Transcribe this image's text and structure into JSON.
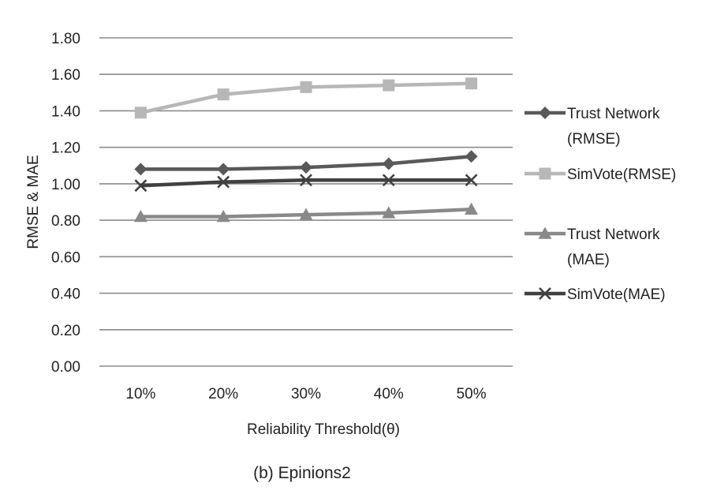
{
  "chart_data": {
    "type": "line",
    "categories": [
      "10%",
      "20%",
      "30%",
      "40%",
      "50%"
    ],
    "ylabel": "RMSE & MAE",
    "xlabel": "Reliability Threshold(θ)",
    "ylim": [
      0,
      1.8
    ],
    "yticks": [
      "0.00",
      "0.20",
      "0.40",
      "0.60",
      "0.80",
      "1.00",
      "1.20",
      "1.40",
      "1.60",
      "1.80"
    ],
    "grid": "horizontal",
    "legend_position": "right",
    "series": [
      {
        "name": [
          "Trust Network",
          "(RMSE)"
        ],
        "values": [
          1.08,
          1.08,
          1.09,
          1.11,
          1.15
        ],
        "color": "#595959",
        "marker": "diamond"
      },
      {
        "name": [
          "SimVote(RMSE)"
        ],
        "values": [
          1.39,
          1.49,
          1.53,
          1.54,
          1.55
        ],
        "color": "#b7b7b7",
        "marker": "square"
      },
      {
        "name": [
          "Trust Network",
          "(MAE)"
        ],
        "values": [
          0.82,
          0.82,
          0.83,
          0.84,
          0.86
        ],
        "color": "#898989",
        "marker": "triangle"
      },
      {
        "name": [
          "SimVote(MAE)"
        ],
        "values": [
          0.99,
          1.01,
          1.02,
          1.02,
          1.02
        ],
        "color": "#404040",
        "marker": "x"
      }
    ]
  },
  "caption": "(b) Epinions2"
}
